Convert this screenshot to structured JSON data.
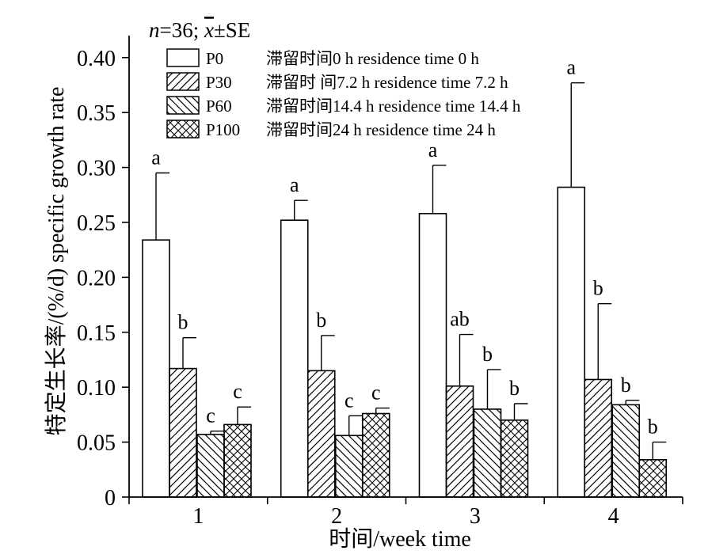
{
  "note": {
    "n_label": "n",
    "n_rest": "=36; ",
    "x_label": "x",
    "se_label": "±SE"
  },
  "chart_data": {
    "type": "bar",
    "title": "",
    "xlabel": "时间/week time",
    "ylabel": "特定生长率/(%/d) specific growth rate",
    "ylim": [
      0,
      0.42
    ],
    "yticks": [
      "0",
      "0.05",
      "0.10",
      "0.15",
      "0.20",
      "0.25",
      "0.30",
      "0.35",
      "0.40"
    ],
    "ytick_values": [
      0,
      0.05,
      0.1,
      0.15,
      0.2,
      0.25,
      0.3,
      0.35,
      0.4
    ],
    "categories": [
      "1",
      "2",
      "3",
      "4"
    ],
    "grid": false,
    "legend_position": "top-left",
    "series": [
      {
        "name": "P0",
        "legend_label": "滞留时间0 h residence time 0 h",
        "pattern": "none",
        "values": [
          0.234,
          0.252,
          0.258,
          0.282
        ],
        "se": [
          0.061,
          0.018,
          0.044,
          0.095
        ],
        "letters": [
          "a",
          "a",
          "a",
          "a"
        ]
      },
      {
        "name": "P30",
        "legend_label": "滞留时 间7.2 h residence time 7.2 h",
        "pattern": "diag-right",
        "values": [
          0.117,
          0.115,
          0.101,
          0.107
        ],
        "se": [
          0.028,
          0.032,
          0.047,
          0.069
        ],
        "letters": [
          "b",
          "b",
          "ab",
          "b"
        ]
      },
      {
        "name": "P60",
        "legend_label": "滞留时间14.4 h residence time 14.4 h",
        "pattern": "diag-left",
        "values": [
          0.057,
          0.056,
          0.08,
          0.084
        ],
        "se": [
          0.003,
          0.018,
          0.036,
          0.004
        ],
        "letters": [
          "c",
          "c",
          "b",
          "b"
        ]
      },
      {
        "name": "P100",
        "legend_label": "滞留时间24 h residence time 24 h",
        "pattern": "cross",
        "values": [
          0.066,
          0.076,
          0.07,
          0.034
        ],
        "se": [
          0.016,
          0.005,
          0.015,
          0.016
        ],
        "letters": [
          "c",
          "c",
          "b",
          "b"
        ]
      }
    ]
  }
}
